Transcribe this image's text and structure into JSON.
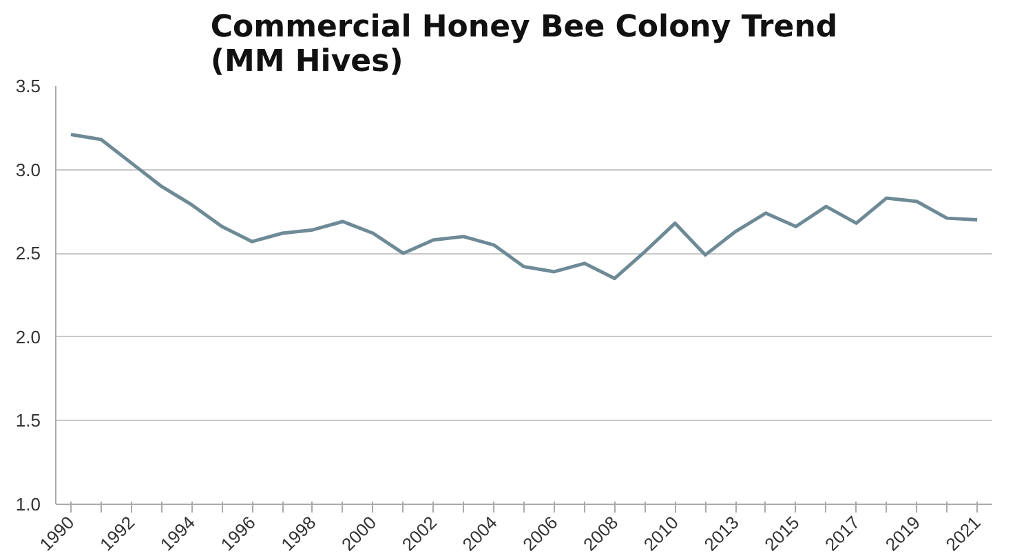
{
  "chart_data": {
    "type": "line",
    "title": "Commercial Honey Bee Colony Trend\n(MM Hives)",
    "categories": [
      "1990",
      null,
      "1992",
      null,
      "1994",
      null,
      "1996",
      null,
      "1998",
      null,
      "2000",
      null,
      "2002",
      null,
      "2004",
      null,
      "2006",
      null,
      "2008",
      null,
      "2010",
      null,
      "2013",
      null,
      "2015",
      null,
      "2017",
      null,
      "2019",
      null,
      "2021"
    ],
    "series": [
      {
        "color": "#6d8a96",
        "values": [
          3.21,
          3.18,
          3.04,
          2.9,
          2.79,
          2.66,
          2.57,
          2.62,
          2.64,
          2.69,
          2.62,
          2.5,
          2.58,
          2.6,
          2.55,
          2.42,
          2.39,
          2.44,
          2.35,
          2.51,
          2.68,
          2.49,
          2.63,
          2.74,
          2.66,
          2.78,
          2.68,
          2.83,
          2.81,
          2.71,
          2.7
        ]
      }
    ],
    "ylim": [
      1,
      3.5
    ],
    "yticks": [
      {
        "value": 1,
        "label": "1.0"
      },
      1.5,
      {
        "value": 2,
        "label": "2.0"
      },
      2.5,
      {
        "value": 3,
        "label": "3.0"
      },
      3.5
    ],
    "grid": "y",
    "marker": "none",
    "line_style": "solid"
  }
}
